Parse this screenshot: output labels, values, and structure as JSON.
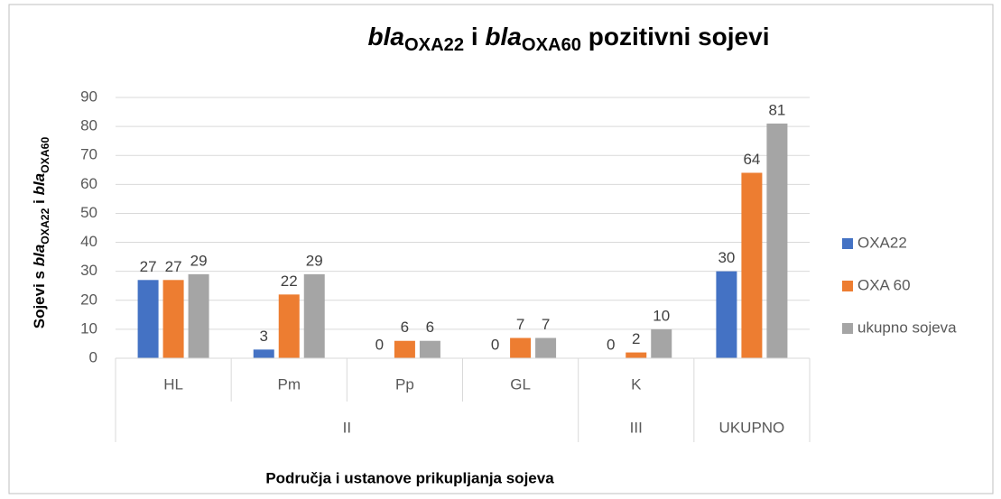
{
  "chart_data": {
    "type": "bar",
    "title_parts": [
      "bla",
      "OXA22",
      " i ",
      "bla",
      "OXA60",
      " pozitivni sojevi"
    ],
    "y_label_parts": [
      "Sojevi s ",
      "bla",
      "OXA22",
      " i ",
      "bla",
      "OXA60"
    ],
    "x_label": "Područja i ustanove prikupljanja sojeva",
    "categories": [
      "HL",
      "Pm",
      "Pp",
      "GL",
      "K",
      null
    ],
    "groups": [
      "II",
      "II",
      "II",
      "II",
      "III",
      "UKUPNO"
    ],
    "series": [
      {
        "name": "OXA22",
        "color": "#4472c4",
        "values": [
          27,
          3,
          0,
          0,
          0,
          30
        ]
      },
      {
        "name": "OXA 60",
        "color": "#ed7d31",
        "values": [
          27,
          22,
          6,
          7,
          2,
          64
        ]
      },
      {
        "name": "ukupno sojeva",
        "color": "#a5a5a5",
        "values": [
          29,
          29,
          6,
          7,
          10,
          81
        ]
      }
    ],
    "ylim": [
      0,
      90
    ],
    "yticks": [
      0,
      10,
      20,
      30,
      40,
      50,
      60,
      70,
      80,
      90
    ],
    "grid": true,
    "legend": "right",
    "data_labels": true
  }
}
